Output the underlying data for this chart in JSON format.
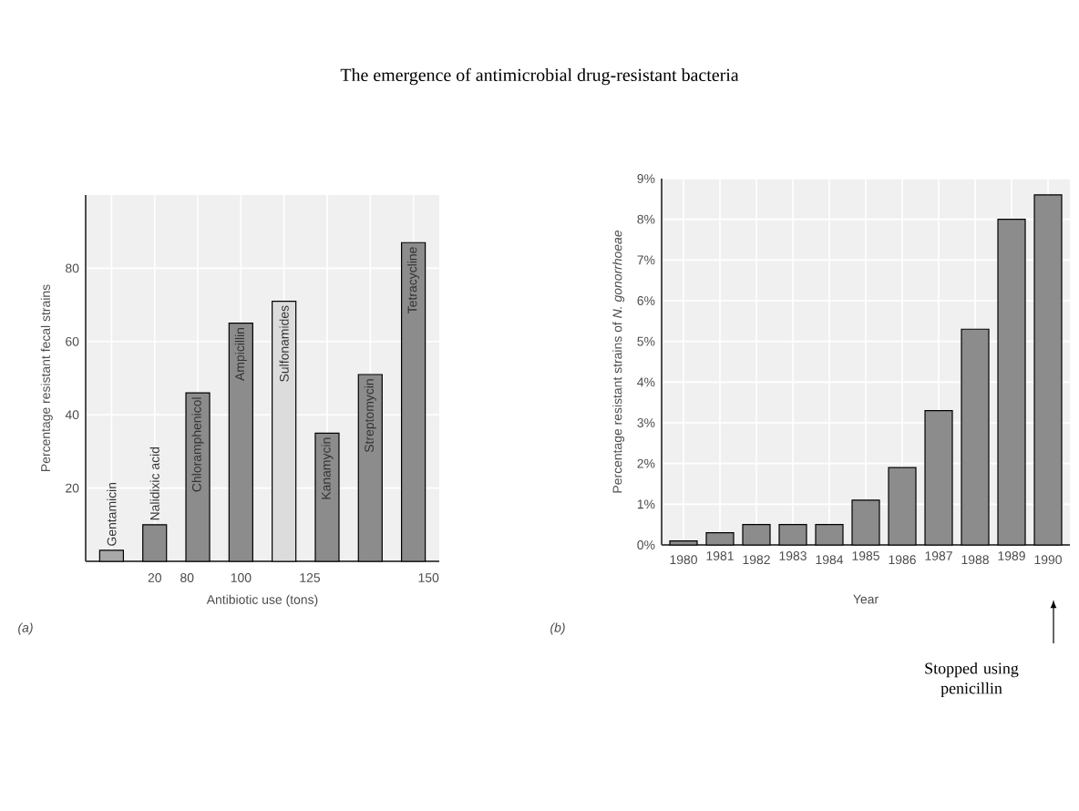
{
  "chart_data": [
    {
      "type": "bar",
      "title": "The emergence of antimicrobial drug-resistant bacteria",
      "xlabel": "Antibiotic use (tons)",
      "ylabel": "Percentage resistant fecal strains",
      "categories": [
        "Gentamicin",
        "Nalidixic acid",
        "Chloramphenicol",
        "Ampicillin",
        "Sulfonamides",
        "Kanamycin",
        "Streptomycin",
        "Tetracycline"
      ],
      "values": [
        3,
        10,
        46,
        65,
        71,
        35,
        51,
        87
      ],
      "colors": [
        "#a8a8a8",
        "#8c8c8c",
        "#8c8c8c",
        "#8c8c8c",
        "#dcdcdc",
        "#8c8c8c",
        "#8c8c8c",
        "#8c8c8c"
      ],
      "ylim": [
        0,
        100
      ],
      "yticks": [
        20,
        40,
        60,
        80
      ],
      "grid": true,
      "annotations": [
        "20",
        "80",
        "100",
        "125",
        "150",
        "(a)"
      ]
    },
    {
      "type": "bar",
      "xlabel": "Year",
      "ylabel": "Percentage resistant strains of *N. gonorrhoeae*",
      "categories": [
        "1980",
        "1981",
        "1982",
        "1983",
        "1984",
        "1985",
        "1986",
        "1987",
        "1988",
        "1989",
        "1990"
      ],
      "values": [
        0.1,
        0.3,
        0.5,
        0.5,
        0.5,
        1.1,
        1.9,
        3.3,
        5.3,
        8.0,
        8.6
      ],
      "color": "#8c8c8c",
      "ylim": [
        0,
        9
      ],
      "yticks": [
        {
          "value": 0,
          "label": "0%"
        },
        {
          "value": 1,
          "label": "1%"
        },
        {
          "value": 2,
          "label": "2%"
        },
        {
          "value": 3,
          "label": "3%"
        },
        {
          "value": 4,
          "label": "4%"
        },
        {
          "value": 5,
          "label": "5%"
        },
        {
          "value": 6,
          "label": "6%"
        },
        {
          "value": 7,
          "label": "7%"
        },
        {
          "value": 8,
          "label": "8%"
        },
        {
          "value": 9,
          "label": "9%"
        }
      ],
      "grid": true,
      "annotations": [
        "(b)",
        "Stopped using penicillin"
      ]
    }
  ]
}
